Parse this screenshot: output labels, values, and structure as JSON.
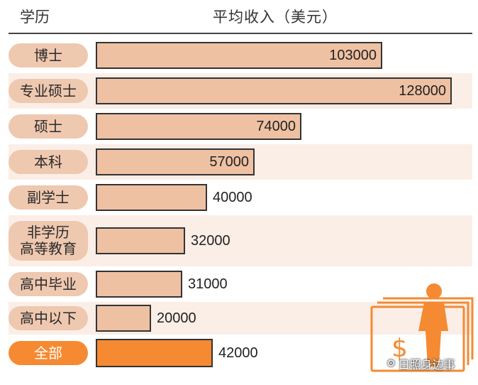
{
  "header": {
    "education_label": "学历",
    "income_label": "平均收入（美元）"
  },
  "chart_data": {
    "type": "bar",
    "orientation": "horizontal",
    "categories": [
      "博士",
      "专业硕士",
      "硕士",
      "本科",
      "副学士",
      "非学历\n高等教育",
      "高中毕业",
      "高中以下",
      "全部"
    ],
    "values": [
      103000,
      128000,
      74000,
      57000,
      40000,
      32000,
      31000,
      20000,
      42000
    ],
    "value_labels": [
      "103000",
      "128000",
      "74000",
      "57000",
      "40000",
      "32000",
      "31000",
      "20000",
      "42000"
    ],
    "highlight_index": 8,
    "colors": {
      "bar": "#efc1a3",
      "bar_highlight": "#f58a32",
      "label_pill": "#efc8b0",
      "row_shade": "#fbeee7"
    }
  },
  "watermark": {
    "text": "日照身边事"
  }
}
